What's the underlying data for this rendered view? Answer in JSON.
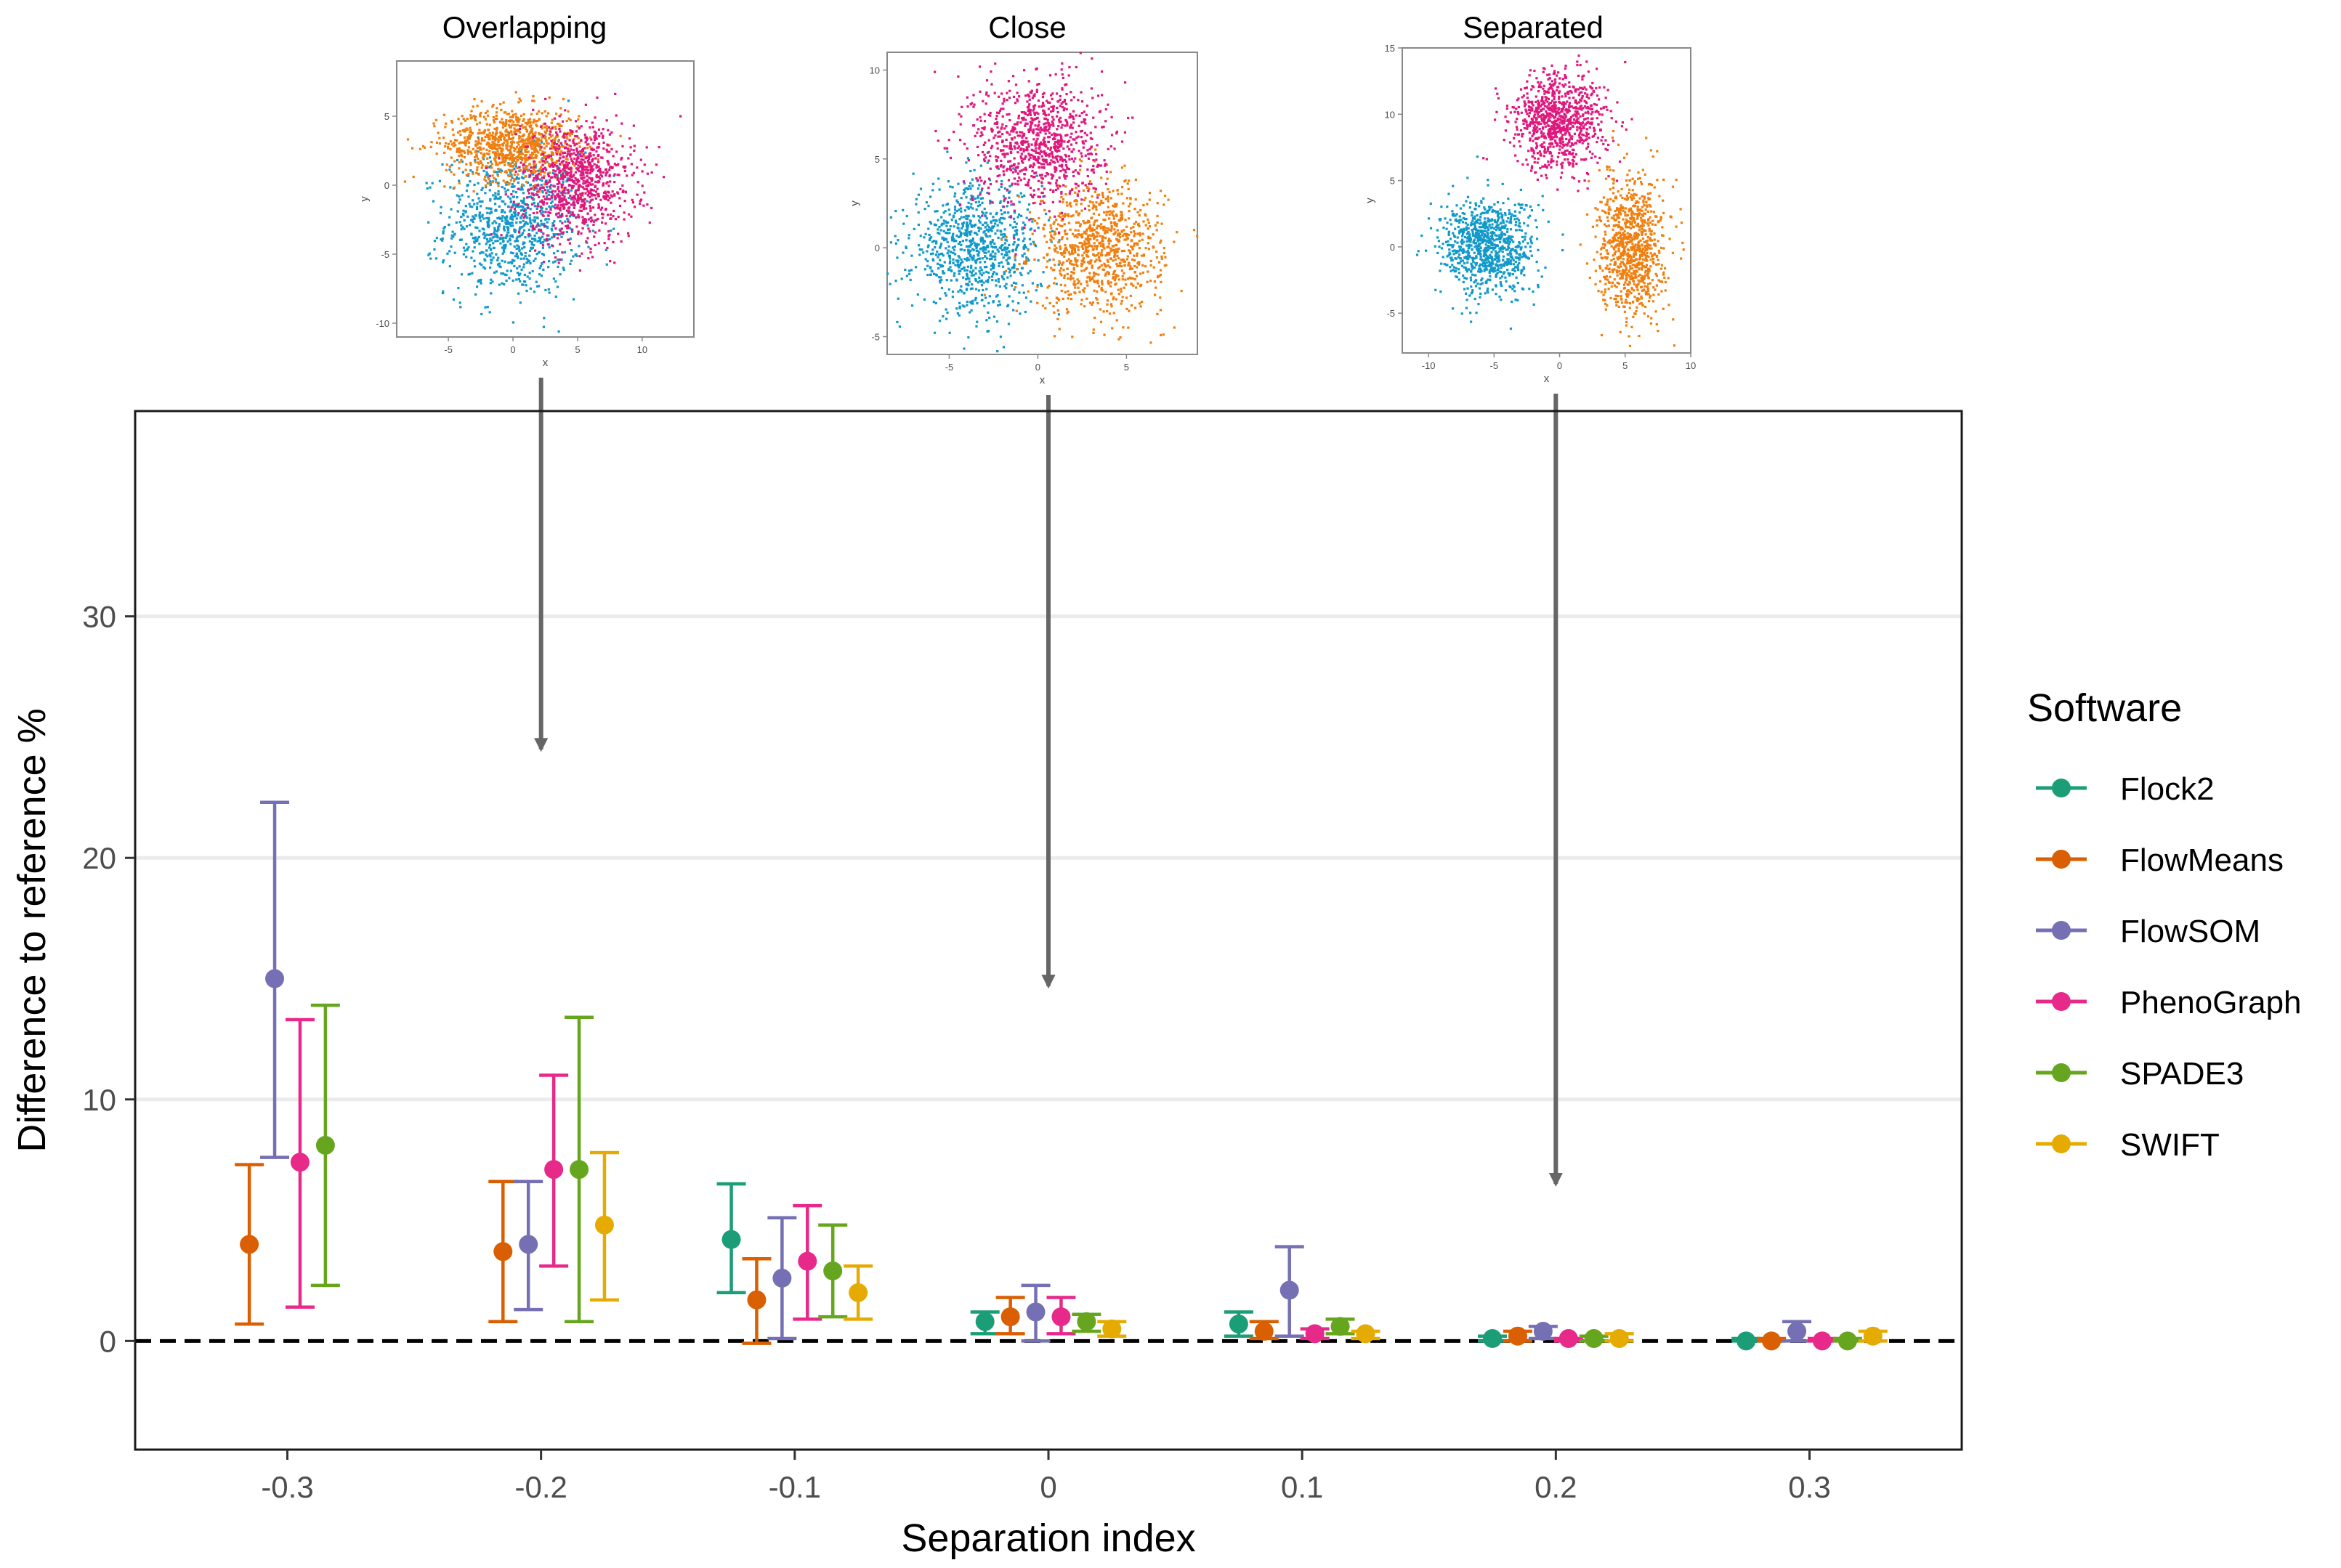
{
  "chart_data": {
    "type": "scatter",
    "main": {
      "xlabel": "Separation index",
      "ylabel": "Difference to reference %",
      "xlim": [
        -0.36,
        0.36
      ],
      "ylim": [
        -4.5,
        38.5
      ],
      "x_ticks": [
        -0.3,
        -0.2,
        -0.1,
        0,
        0.1,
        0.2,
        0.3
      ],
      "x_tick_labels": [
        "-0.3",
        "-0.2",
        "-0.1",
        "0",
        "0.1",
        "0.2",
        "0.3"
      ],
      "y_ticks": [
        0,
        10,
        20,
        30
      ],
      "y_tick_labels": [
        "0",
        "10",
        "20",
        "30"
      ],
      "grid": "horizontal",
      "reference_line": 0,
      "legend": {
        "title": "Software",
        "placement": "right"
      },
      "series": [
        {
          "name": "Flock2",
          "color": "#1b9e77",
          "points": [
            {
              "x": -0.1,
              "y": 4.2,
              "lo": 2.0,
              "hi": 6.5
            },
            {
              "x": 0,
              "y": 0.8,
              "lo": 0.3,
              "hi": 1.2
            },
            {
              "x": 0.1,
              "y": 0.7,
              "lo": 0.2,
              "hi": 1.2
            },
            {
              "x": 0.2,
              "y": 0.1,
              "lo": 0.0,
              "hi": 0.2
            },
            {
              "x": 0.3,
              "y": 0.0,
              "lo": 0.0,
              "hi": 0.1
            }
          ]
        },
        {
          "name": "FlowMeans",
          "color": "#d95f02",
          "points": [
            {
              "x": -0.3,
              "y": 4.0,
              "lo": 0.7,
              "hi": 7.3
            },
            {
              "x": -0.2,
              "y": 3.7,
              "lo": 0.8,
              "hi": 6.6
            },
            {
              "x": -0.1,
              "y": 1.7,
              "lo": -0.1,
              "hi": 3.4
            },
            {
              "x": 0,
              "y": 1.0,
              "lo": 0.3,
              "hi": 1.8
            },
            {
              "x": 0.1,
              "y": 0.4,
              "lo": 0.1,
              "hi": 0.8
            },
            {
              "x": 0.2,
              "y": 0.2,
              "lo": 0.0,
              "hi": 0.4
            },
            {
              "x": 0.3,
              "y": 0.0,
              "lo": 0.0,
              "hi": 0.1
            }
          ]
        },
        {
          "name": "FlowSOM",
          "color": "#7570b3",
          "points": [
            {
              "x": -0.3,
              "y": 15.0,
              "lo": 7.6,
              "hi": 22.3
            },
            {
              "x": -0.2,
              "y": 4.0,
              "lo": 1.3,
              "hi": 6.6
            },
            {
              "x": -0.1,
              "y": 2.6,
              "lo": 0.1,
              "hi": 5.1
            },
            {
              "x": 0,
              "y": 1.2,
              "lo": 0.0,
              "hi": 2.3
            },
            {
              "x": 0.1,
              "y": 2.1,
              "lo": 0.2,
              "hi": 3.9
            },
            {
              "x": 0.2,
              "y": 0.4,
              "lo": 0.1,
              "hi": 0.6
            },
            {
              "x": 0.3,
              "y": 0.4,
              "lo": 0.0,
              "hi": 0.8
            }
          ]
        },
        {
          "name": "PhenoGraph",
          "color": "#e7298a",
          "points": [
            {
              "x": -0.3,
              "y": 7.4,
              "lo": 1.4,
              "hi": 13.3
            },
            {
              "x": -0.2,
              "y": 7.1,
              "lo": 3.1,
              "hi": 11.0
            },
            {
              "x": -0.1,
              "y": 3.3,
              "lo": 0.9,
              "hi": 5.6
            },
            {
              "x": 0,
              "y": 1.0,
              "lo": 0.3,
              "hi": 1.8
            },
            {
              "x": 0.1,
              "y": 0.3,
              "lo": 0.1,
              "hi": 0.5
            },
            {
              "x": 0.2,
              "y": 0.1,
              "lo": 0.0,
              "hi": 0.1
            },
            {
              "x": 0.3,
              "y": 0.0,
              "lo": 0.0,
              "hi": 0.1
            }
          ]
        },
        {
          "name": "SPADE3",
          "color": "#66a61e",
          "points": [
            {
              "x": -0.3,
              "y": 8.1,
              "lo": 2.3,
              "hi": 13.9
            },
            {
              "x": -0.2,
              "y": 7.1,
              "lo": 0.8,
              "hi": 13.4
            },
            {
              "x": -0.1,
              "y": 2.9,
              "lo": 1.0,
              "hi": 4.8
            },
            {
              "x": 0,
              "y": 0.8,
              "lo": 0.4,
              "hi": 1.1
            },
            {
              "x": 0.1,
              "y": 0.6,
              "lo": 0.3,
              "hi": 0.9
            },
            {
              "x": 0.2,
              "y": 0.1,
              "lo": 0.0,
              "hi": 0.2
            },
            {
              "x": 0.3,
              "y": 0.0,
              "lo": 0.0,
              "hi": 0.1
            }
          ]
        },
        {
          "name": "SWIFT",
          "color": "#e6ab02",
          "points": [
            {
              "x": -0.2,
              "y": 4.8,
              "lo": 1.7,
              "hi": 7.8
            },
            {
              "x": -0.1,
              "y": 2.0,
              "lo": 0.9,
              "hi": 3.1
            },
            {
              "x": 0,
              "y": 0.5,
              "lo": 0.2,
              "hi": 0.8
            },
            {
              "x": 0.1,
              "y": 0.3,
              "lo": 0.1,
              "hi": 0.4
            },
            {
              "x": 0.2,
              "y": 0.1,
              "lo": 0.0,
              "hi": 0.3
            },
            {
              "x": 0.3,
              "y": 0.2,
              "lo": 0.0,
              "hi": 0.4
            }
          ]
        }
      ]
    },
    "insets": [
      {
        "title": "Overlapping",
        "points_to": -0.2,
        "arrow_tip_y": 24.5,
        "xlabel": "x",
        "ylabel": "y",
        "xlim": [
          -9,
          14
        ],
        "ylim": [
          -11,
          9
        ],
        "x_ticks": [
          -5,
          0,
          5,
          10
        ],
        "y_ticks": [
          -10,
          -5,
          0,
          5
        ],
        "clusters": [
          {
            "color": "#1199c9",
            "cx": 0,
            "cy": -2.8,
            "sx": 2.6,
            "sy": 2.6
          },
          {
            "color": "#f07f0e",
            "cx": 0,
            "cy": 3.0,
            "sx": 2.6,
            "sy": 1.3
          },
          {
            "color": "#e0177d",
            "cx": 5,
            "cy": 0.2,
            "sx": 2.2,
            "sy": 2.2
          }
        ]
      },
      {
        "title": "Close",
        "points_to": 0,
        "arrow_tip_y": 14.7,
        "xlabel": "x",
        "ylabel": "y",
        "xlim": [
          -8.5,
          9
        ],
        "ylim": [
          -6,
          11
        ],
        "x_ticks": [
          -5,
          0,
          5
        ],
        "y_ticks": [
          -5,
          0,
          5,
          10
        ],
        "clusters": [
          {
            "color": "#1199c9",
            "cx": -3.5,
            "cy": 0,
            "sx": 1.8,
            "sy": 1.8
          },
          {
            "color": "#f07f0e",
            "cx": 3.5,
            "cy": 0,
            "sx": 1.8,
            "sy": 1.8
          },
          {
            "color": "#e0177d",
            "cx": 0,
            "cy": 6,
            "sx": 1.8,
            "sy": 1.8
          }
        ]
      },
      {
        "title": "Separated",
        "points_to": 0.2,
        "arrow_tip_y": 6.5,
        "xlabel": "x",
        "ylabel": "y",
        "xlim": [
          -12,
          10
        ],
        "ylim": [
          -8,
          15
        ],
        "x_ticks": [
          -10,
          -5,
          0,
          5,
          10
        ],
        "y_ticks": [
          -5,
          0,
          5,
          10,
          15
        ],
        "clusters": [
          {
            "color": "#1199c9",
            "cx": -5.5,
            "cy": 0,
            "sx": 1.8,
            "sy": 1.8
          },
          {
            "color": "#f07f0e",
            "cx": 5.5,
            "cy": 0,
            "sx": 1.2,
            "sy": 2.6
          },
          {
            "color": "#e0177d",
            "cx": 0,
            "cy": 9.5,
            "sx": 1.8,
            "sy": 1.8
          }
        ]
      }
    ]
  }
}
